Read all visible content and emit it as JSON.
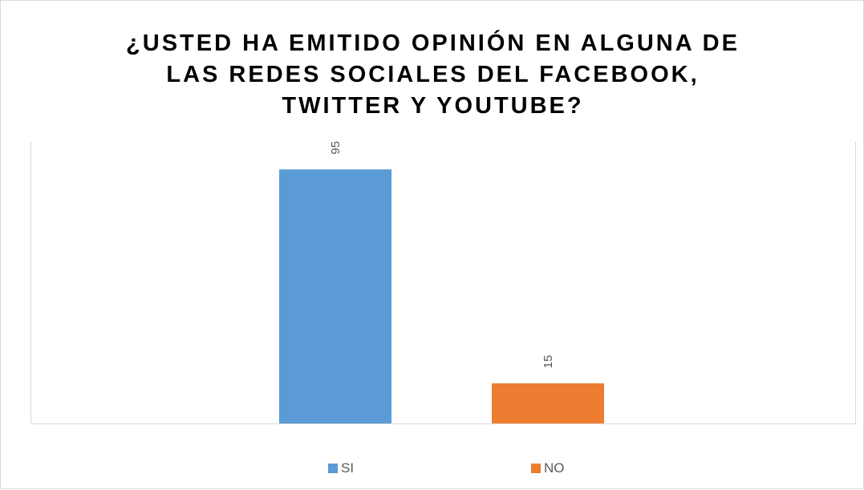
{
  "chart_data": {
    "type": "bar",
    "title_lines": [
      "¿USTED HA EMITIDO OPINIÓN EN ALGUNA DE",
      "LAS REDES SOCIALES DEL FACEBOOK,",
      "TWITTER Y YOUTUBE?"
    ],
    "categories": [
      "SI",
      "NO"
    ],
    "values": [
      95,
      15
    ],
    "data_labels": [
      "95",
      "15"
    ],
    "colors": [
      "#5b9bd5",
      "#ed7d31"
    ],
    "ylim": [
      0,
      100
    ],
    "grid": false,
    "legend": {
      "position": "bottom",
      "entries": [
        "SI",
        "NO"
      ]
    },
    "label_color": "#595959"
  }
}
